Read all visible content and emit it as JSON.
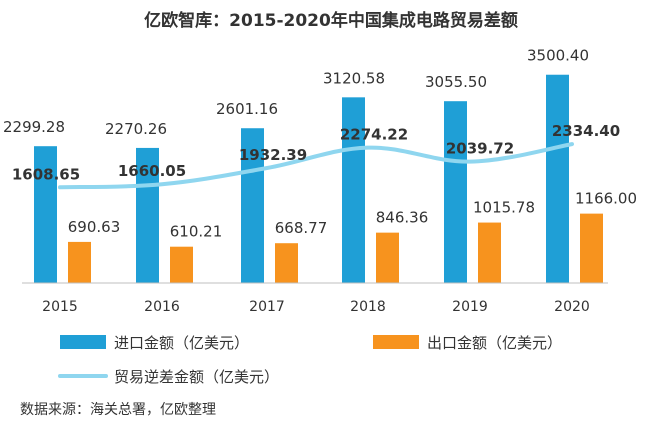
{
  "chart_data": {
    "type": "bar",
    "title": "亿欧智库：2015-2020年中国集成电路贸易差额",
    "categories": [
      "2015",
      "2016",
      "2017",
      "2018",
      "2019",
      "2020"
    ],
    "series": [
      {
        "name": "进口金额（亿美元）",
        "kind": "bar",
        "color": "#1f9fd6",
        "values": [
          2299.28,
          2270.26,
          2601.16,
          3120.58,
          3055.5,
          3500.4
        ],
        "labels": [
          "2299.28",
          "2270.26",
          "2601.16",
          "3120.58",
          "3055.50",
          "3500.40"
        ]
      },
      {
        "name": "出口金额（亿美元）",
        "kind": "bar",
        "color": "#f7931e",
        "values": [
          690.63,
          610.21,
          668.77,
          846.36,
          1015.78,
          1166.0
        ],
        "labels": [
          "690.63",
          "610.21",
          "668.77",
          "846.36",
          "1015.78",
          "1166.00"
        ]
      },
      {
        "name": "贸易逆差金额（亿美元）",
        "kind": "line",
        "color": "#8fd6ef",
        "values": [
          1608.65,
          1660.05,
          1932.39,
          2274.22,
          2039.72,
          2334.4
        ],
        "labels": [
          "1608.65",
          "1660.05",
          "1932.39",
          "2274.22",
          "2039.72",
          "2334.40"
        ]
      }
    ],
    "ylim": [
      0,
      3600
    ],
    "grid": false,
    "legend_position": "bottom",
    "source": "数据来源：海关总署，亿欧整理"
  }
}
